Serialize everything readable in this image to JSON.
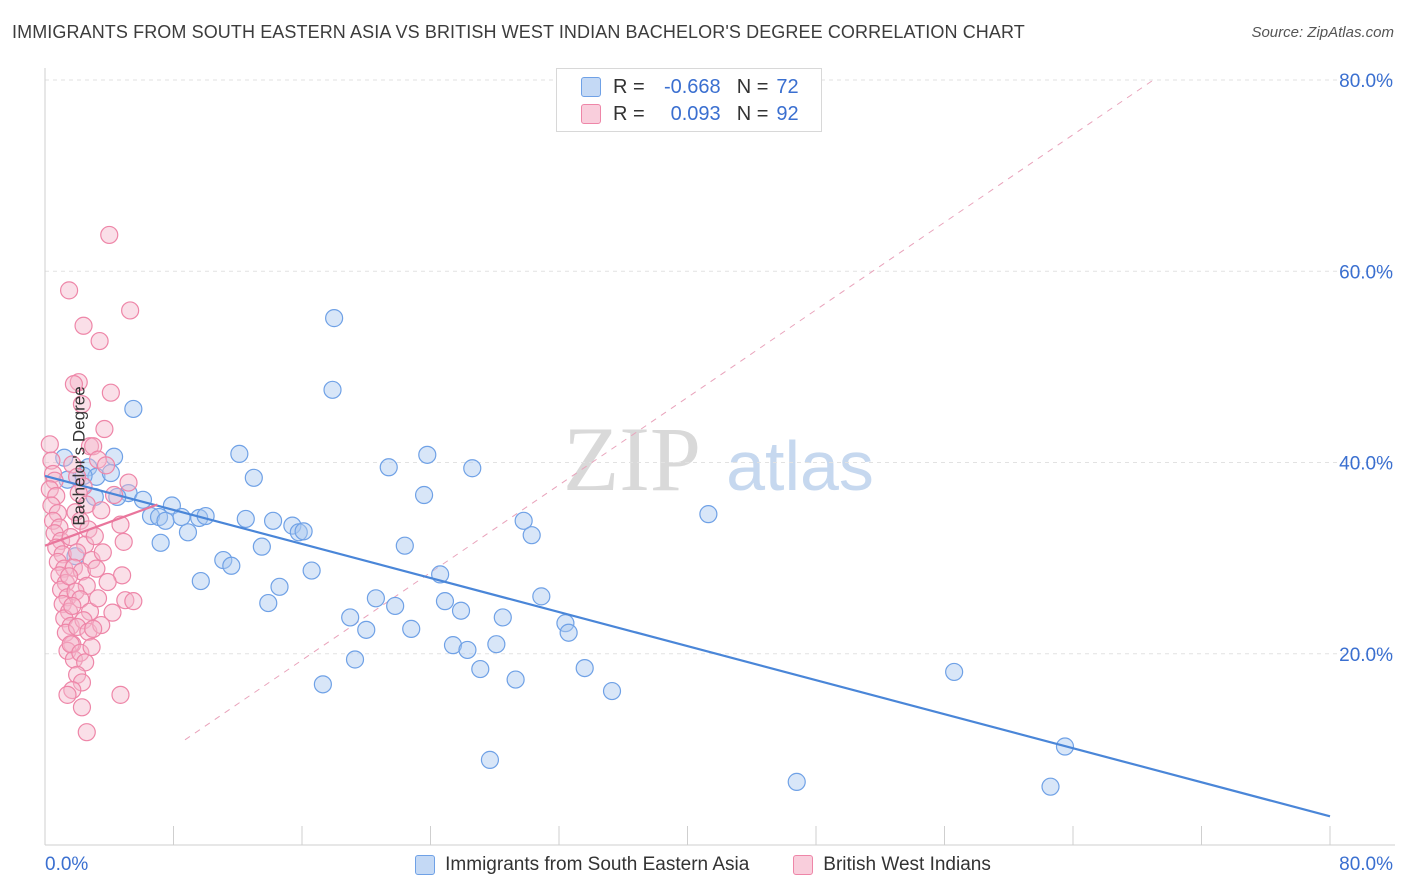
{
  "title": "IMMIGRANTS FROM SOUTH EASTERN ASIA VS BRITISH WEST INDIAN BACHELOR'S DEGREE CORRELATION CHART",
  "source": "Source: ZipAtlas.com",
  "watermark": {
    "zip": "ZIP",
    "atlas": "atlas"
  },
  "legend": {
    "rows": [
      {
        "r_label": "R =",
        "r_value": "-0.668",
        "n_label": "N =",
        "n_value": "72",
        "color": "#6fa1e6"
      },
      {
        "r_label": "R =",
        "r_value": "0.093",
        "n_label": "N =",
        "n_value": "92",
        "color": "#ee86a8"
      }
    ]
  },
  "bottom_legend": [
    {
      "label": "Immigrants from South Eastern Asia",
      "color": "#6fa1e6"
    },
    {
      "label": "British West Indians",
      "color": "#ee86a8"
    }
  ],
  "colors": {
    "blue": "#4a86d8",
    "blue_fill": "#a9c7f0",
    "pink": "#e9769c",
    "pink_fill": "#f5b9cd",
    "tick_text": "#3a6fd0",
    "grid": "#e3e3e3"
  },
  "chart_data": {
    "type": "scatter",
    "title": "IMMIGRANTS FROM SOUTH EASTERN ASIA VS BRITISH WEST INDIAN BACHELOR'S DEGREE CORRELATION CHART",
    "xlabel": "",
    "ylabel": "Bachelor's Degree",
    "xlim": [
      0,
      80
    ],
    "ylim": [
      0,
      80
    ],
    "x_tick_labels": [
      "0.0%",
      "80.0%"
    ],
    "y_tick_labels": [
      "20.0%",
      "40.0%",
      "60.0%",
      "80.0%"
    ],
    "y_ticks": [
      20,
      40,
      60,
      80
    ],
    "grid": true,
    "legend_position": "top-center",
    "series": [
      {
        "name": "Immigrants from South Eastern Asia",
        "color": "#4a86d8",
        "points": [
          [
            1.2,
            40.5
          ],
          [
            2.7,
            39.5
          ],
          [
            4.3,
            40.6
          ],
          [
            3.2,
            38.5
          ],
          [
            4.1,
            38.9
          ],
          [
            3.1,
            36.4
          ],
          [
            5.5,
            45.6
          ],
          [
            5.2,
            36.8
          ],
          [
            6.1,
            36.1
          ],
          [
            6.6,
            34.4
          ],
          [
            7.1,
            34.3
          ],
          [
            7.5,
            33.9
          ],
          [
            7.2,
            31.6
          ],
          [
            7.9,
            35.5
          ],
          [
            8.5,
            34.3
          ],
          [
            8.9,
            32.7
          ],
          [
            9.6,
            34.2
          ],
          [
            10.0,
            34.4
          ],
          [
            9.7,
            27.6
          ],
          [
            11.1,
            29.8
          ],
          [
            11.6,
            29.2
          ],
          [
            12.1,
            40.9
          ],
          [
            12.5,
            34.1
          ],
          [
            13.0,
            38.4
          ],
          [
            13.5,
            31.2
          ],
          [
            14.2,
            33.9
          ],
          [
            14.6,
            27.0
          ],
          [
            13.9,
            25.3
          ],
          [
            15.4,
            33.4
          ],
          [
            15.8,
            32.7
          ],
          [
            16.1,
            32.8
          ],
          [
            16.6,
            28.7
          ],
          [
            17.3,
            16.8
          ],
          [
            18.0,
            55.1
          ],
          [
            17.9,
            47.6
          ],
          [
            19.0,
            23.8
          ],
          [
            19.3,
            19.4
          ],
          [
            20.0,
            22.5
          ],
          [
            20.6,
            25.8
          ],
          [
            21.4,
            39.5
          ],
          [
            21.8,
            25.0
          ],
          [
            22.4,
            31.3
          ],
          [
            22.8,
            22.6
          ],
          [
            23.6,
            36.6
          ],
          [
            23.8,
            40.8
          ],
          [
            24.6,
            28.3
          ],
          [
            24.9,
            25.5
          ],
          [
            25.4,
            20.9
          ],
          [
            25.9,
            24.5
          ],
          [
            26.3,
            20.4
          ],
          [
            26.6,
            39.4
          ],
          [
            27.1,
            18.4
          ],
          [
            27.7,
            8.9
          ],
          [
            28.1,
            21.0
          ],
          [
            28.5,
            23.8
          ],
          [
            29.3,
            17.3
          ],
          [
            29.8,
            33.9
          ],
          [
            30.3,
            32.4
          ],
          [
            30.9,
            26.0
          ],
          [
            32.4,
            23.2
          ],
          [
            32.6,
            22.2
          ],
          [
            33.6,
            18.5
          ],
          [
            35.3,
            16.1
          ],
          [
            41.3,
            34.6
          ],
          [
            46.8,
            6.6
          ],
          [
            56.6,
            18.1
          ],
          [
            63.5,
            10.3
          ],
          [
            62.6,
            6.1
          ],
          [
            1.4,
            38.2
          ],
          [
            2.4,
            38.6
          ],
          [
            1.9,
            30.2
          ],
          [
            4.5,
            36.4
          ]
        ]
      },
      {
        "name": "British West Indians",
        "color": "#e9769c",
        "points": [
          [
            0.3,
            41.9
          ],
          [
            0.4,
            40.2
          ],
          [
            0.5,
            38.8
          ],
          [
            0.6,
            38.1
          ],
          [
            0.3,
            37.2
          ],
          [
            0.7,
            36.5
          ],
          [
            0.4,
            35.5
          ],
          [
            0.8,
            34.7
          ],
          [
            0.5,
            33.9
          ],
          [
            0.9,
            33.2
          ],
          [
            0.6,
            32.6
          ],
          [
            1.0,
            31.8
          ],
          [
            0.7,
            31.1
          ],
          [
            1.1,
            30.4
          ],
          [
            0.8,
            29.6
          ],
          [
            1.2,
            28.9
          ],
          [
            0.9,
            28.2
          ],
          [
            1.3,
            27.4
          ],
          [
            1.0,
            26.7
          ],
          [
            1.4,
            25.9
          ],
          [
            1.1,
            25.2
          ],
          [
            1.5,
            24.4
          ],
          [
            1.2,
            23.7
          ],
          [
            1.6,
            22.9
          ],
          [
            1.3,
            22.2
          ],
          [
            1.7,
            21.0
          ],
          [
            1.4,
            20.3
          ],
          [
            1.8,
            19.4
          ],
          [
            1.5,
            58.0
          ],
          [
            2.4,
            54.3
          ],
          [
            2.1,
            48.4
          ],
          [
            1.8,
            48.2
          ],
          [
            2.3,
            46.1
          ],
          [
            2.8,
            41.7
          ],
          [
            1.7,
            39.8
          ],
          [
            2.0,
            38.5
          ],
          [
            2.4,
            37.5
          ],
          [
            2.1,
            36.8
          ],
          [
            2.6,
            35.6
          ],
          [
            1.9,
            34.8
          ],
          [
            2.2,
            33.9
          ],
          [
            2.7,
            33.0
          ],
          [
            1.6,
            32.2
          ],
          [
            2.5,
            31.4
          ],
          [
            2.0,
            30.6
          ],
          [
            2.9,
            29.8
          ],
          [
            1.8,
            29.0
          ],
          [
            2.3,
            28.6
          ],
          [
            1.5,
            28.1
          ],
          [
            2.6,
            27.1
          ],
          [
            1.9,
            26.5
          ],
          [
            2.2,
            25.7
          ],
          [
            1.7,
            25.0
          ],
          [
            2.8,
            24.4
          ],
          [
            2.4,
            23.5
          ],
          [
            2.0,
            22.8
          ],
          [
            2.7,
            22.3
          ],
          [
            1.6,
            21.0
          ],
          [
            2.2,
            20.1
          ],
          [
            2.5,
            19.1
          ],
          [
            2.0,
            17.8
          ],
          [
            2.3,
            17.0
          ],
          [
            1.7,
            16.2
          ],
          [
            1.4,
            15.7
          ],
          [
            2.3,
            14.4
          ],
          [
            2.6,
            11.8
          ],
          [
            4.0,
            63.8
          ],
          [
            5.3,
            55.9
          ],
          [
            3.4,
            52.7
          ],
          [
            4.1,
            47.3
          ],
          [
            3.7,
            43.5
          ],
          [
            3.0,
            41.7
          ],
          [
            3.3,
            40.3
          ],
          [
            3.8,
            39.7
          ],
          [
            5.2,
            37.9
          ],
          [
            4.3,
            36.6
          ],
          [
            3.5,
            35.0
          ],
          [
            4.7,
            33.5
          ],
          [
            3.1,
            32.3
          ],
          [
            4.9,
            31.7
          ],
          [
            3.6,
            30.6
          ],
          [
            3.2,
            28.9
          ],
          [
            4.8,
            28.2
          ],
          [
            3.9,
            27.5
          ],
          [
            5.0,
            25.6
          ],
          [
            3.3,
            25.8
          ],
          [
            4.2,
            24.3
          ],
          [
            3.5,
            23.0
          ],
          [
            4.7,
            15.7
          ],
          [
            5.5,
            25.5
          ],
          [
            3.0,
            22.6
          ],
          [
            2.9,
            20.7
          ]
        ]
      }
    ],
    "trend_lines": [
      {
        "series": "Immigrants from South Eastern Asia",
        "x": [
          0,
          80
        ],
        "y": [
          38.6,
          3.0
        ]
      },
      {
        "series": "British West Indians",
        "x": [
          0,
          7
        ],
        "y": [
          31.3,
          35.6
        ]
      }
    ],
    "reference_line": {
      "x": [
        0,
        80
      ],
      "y": [
        0,
        80
      ],
      "style": "dashed"
    }
  }
}
